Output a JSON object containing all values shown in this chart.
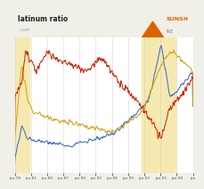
{
  "bg_color": "#f0efe8",
  "plot_bg": "#ffffff",
  "highlight_color": "#f5e9b0",
  "grid_color": "#cccccc",
  "x_labels": [
    "jan-78",
    "jan-81",
    "jan-84",
    "jan-87",
    "jan-90",
    "jan-93",
    "jan-96",
    "jan-99",
    "jan-02",
    "jan-05",
    "jan-08",
    "jan"
  ],
  "gold_color": "#d4a010",
  "platinum_color": "#3366cc",
  "ratio_color": "#cc2200",
  "title_text": "latinum ratio",
  "subtitle_text": "..com",
  "logo_color": "#e06000",
  "logo_text": "SUNSH",
  "logo_subtext": "INE",
  "n_points": 400,
  "seed": 10
}
